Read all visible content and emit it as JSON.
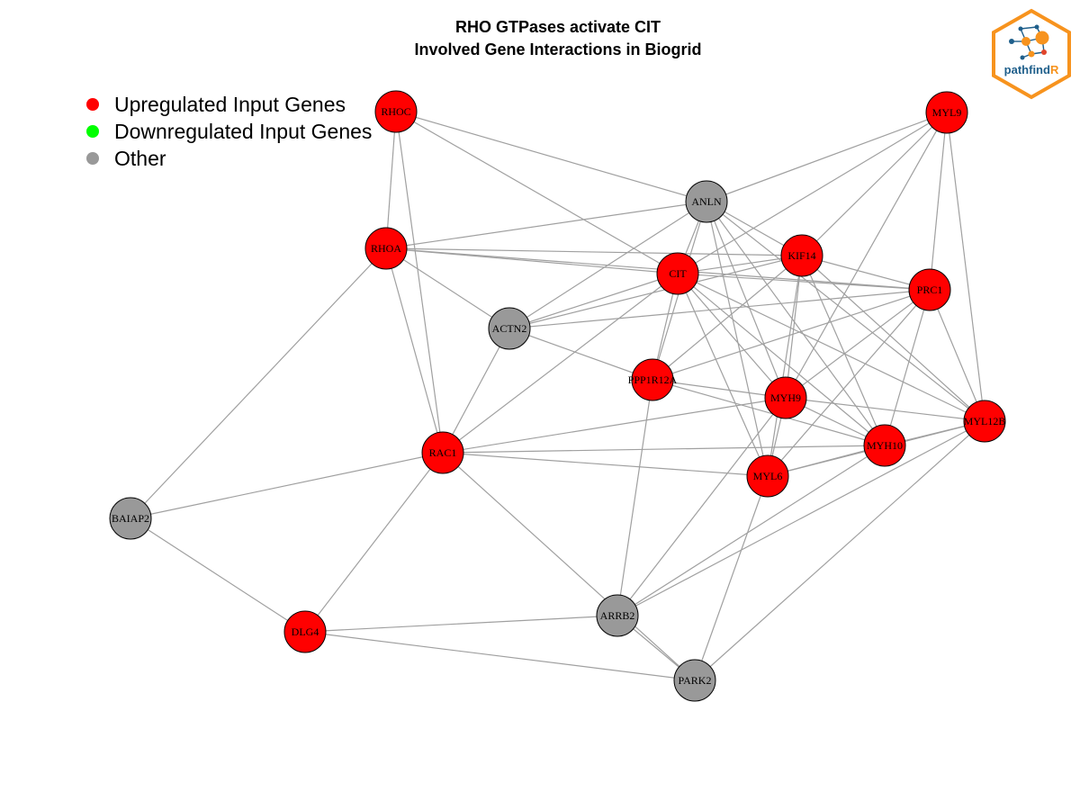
{
  "title": {
    "line1": "RHO GTPases activate CIT",
    "line2": "Involved Gene Interactions in Biogrid"
  },
  "legend": [
    {
      "label": "Upregulated Input Genes",
      "color": "#ff0000"
    },
    {
      "label": "Downregulated Input Genes",
      "color": "#00ff00"
    },
    {
      "label": "Other",
      "color": "#999999"
    }
  ],
  "logo": {
    "text_main": "pathfind",
    "text_accent": "R",
    "border_color": "#f7931e",
    "text_color": "#1f5f8b"
  },
  "edge_color": "#a0a0a0",
  "node_colors": {
    "up": "#ff0000",
    "other": "#999999"
  },
  "nodes": [
    {
      "id": "RHOC",
      "group": "up"
    },
    {
      "id": "MYL9",
      "group": "up"
    },
    {
      "id": "ANLN",
      "group": "other"
    },
    {
      "id": "RHOA",
      "group": "up"
    },
    {
      "id": "KIF14",
      "group": "up"
    },
    {
      "id": "CIT",
      "group": "up"
    },
    {
      "id": "PRC1",
      "group": "up"
    },
    {
      "id": "ACTN2",
      "group": "other"
    },
    {
      "id": "PPP1R12A",
      "group": "up"
    },
    {
      "id": "MYH9",
      "group": "up"
    },
    {
      "id": "MYL12B",
      "group": "up"
    },
    {
      "id": "RAC1",
      "group": "up"
    },
    {
      "id": "MYH10",
      "group": "up"
    },
    {
      "id": "MYL6",
      "group": "up"
    },
    {
      "id": "BAIAP2",
      "group": "other"
    },
    {
      "id": "DLG4",
      "group": "up"
    },
    {
      "id": "ARRB2",
      "group": "other"
    },
    {
      "id": "PARK2",
      "group": "other"
    }
  ],
  "edges": [
    [
      "RHOC",
      "RHOA"
    ],
    [
      "RHOC",
      "RAC1"
    ],
    [
      "RHOC",
      "ANLN"
    ],
    [
      "RHOC",
      "CIT"
    ],
    [
      "MYL9",
      "ANLN"
    ],
    [
      "MYL9",
      "CIT"
    ],
    [
      "MYL9",
      "KIF14"
    ],
    [
      "MYL9",
      "PRC1"
    ],
    [
      "MYL9",
      "MYH9"
    ],
    [
      "MYL9",
      "MYL12B"
    ],
    [
      "RHOA",
      "ANLN"
    ],
    [
      "RHOA",
      "CIT"
    ],
    [
      "RHOA",
      "KIF14"
    ],
    [
      "RHOA",
      "PRC1"
    ],
    [
      "RHOA",
      "ACTN2"
    ],
    [
      "RHOA",
      "BAIAP2"
    ],
    [
      "RHOA",
      "RAC1"
    ],
    [
      "ANLN",
      "ACTN2"
    ],
    [
      "ANLN",
      "CIT"
    ],
    [
      "ANLN",
      "KIF14"
    ],
    [
      "ANLN",
      "PPP1R12A"
    ],
    [
      "ANLN",
      "MYH9"
    ],
    [
      "ANLN",
      "MYH10"
    ],
    [
      "ANLN",
      "MYL6"
    ],
    [
      "ANLN",
      "MYL12B"
    ],
    [
      "CIT",
      "KIF14"
    ],
    [
      "CIT",
      "PRC1"
    ],
    [
      "CIT",
      "ACTN2"
    ],
    [
      "CIT",
      "RAC1"
    ],
    [
      "CIT",
      "PPP1R12A"
    ],
    [
      "CIT",
      "MYH9"
    ],
    [
      "CIT",
      "MYH10"
    ],
    [
      "CIT",
      "MYL6"
    ],
    [
      "CIT",
      "MYL12B"
    ],
    [
      "KIF14",
      "ACTN2"
    ],
    [
      "KIF14",
      "PRC1"
    ],
    [
      "KIF14",
      "PPP1R12A"
    ],
    [
      "KIF14",
      "MYH9"
    ],
    [
      "KIF14",
      "MYH10"
    ],
    [
      "KIF14",
      "MYL6"
    ],
    [
      "KIF14",
      "MYL12B"
    ],
    [
      "PRC1",
      "ACTN2"
    ],
    [
      "PRC1",
      "PPP1R12A"
    ],
    [
      "PRC1",
      "MYH9"
    ],
    [
      "PRC1",
      "MYH10"
    ],
    [
      "PRC1",
      "MYL6"
    ],
    [
      "PRC1",
      "MYL12B"
    ],
    [
      "ACTN2",
      "RAC1"
    ],
    [
      "ACTN2",
      "PPP1R12A"
    ],
    [
      "PPP1R12A",
      "MYH9"
    ],
    [
      "PPP1R12A",
      "MYH10"
    ],
    [
      "PPP1R12A",
      "ARRB2"
    ],
    [
      "MYH9",
      "RAC1"
    ],
    [
      "MYH9",
      "MYH10"
    ],
    [
      "MYH9",
      "MYL6"
    ],
    [
      "MYH9",
      "MYL12B"
    ],
    [
      "MYH9",
      "ARRB2"
    ],
    [
      "MYH10",
      "MYL6"
    ],
    [
      "MYH10",
      "MYL12B"
    ],
    [
      "MYH10",
      "ARRB2"
    ],
    [
      "MYH10",
      "RAC1"
    ],
    [
      "MYL6",
      "RAC1"
    ],
    [
      "MYL6",
      "PARK2"
    ],
    [
      "MYL6",
      "MYL12B"
    ],
    [
      "MYL12B",
      "ARRB2"
    ],
    [
      "MYL12B",
      "PARK2"
    ],
    [
      "RAC1",
      "BAIAP2"
    ],
    [
      "RAC1",
      "DLG4"
    ],
    [
      "RAC1",
      "PARK2"
    ],
    [
      "BAIAP2",
      "DLG4"
    ],
    [
      "DLG4",
      "ARRB2"
    ],
    [
      "DLG4",
      "PARK2"
    ],
    [
      "ARRB2",
      "PARK2"
    ]
  ]
}
